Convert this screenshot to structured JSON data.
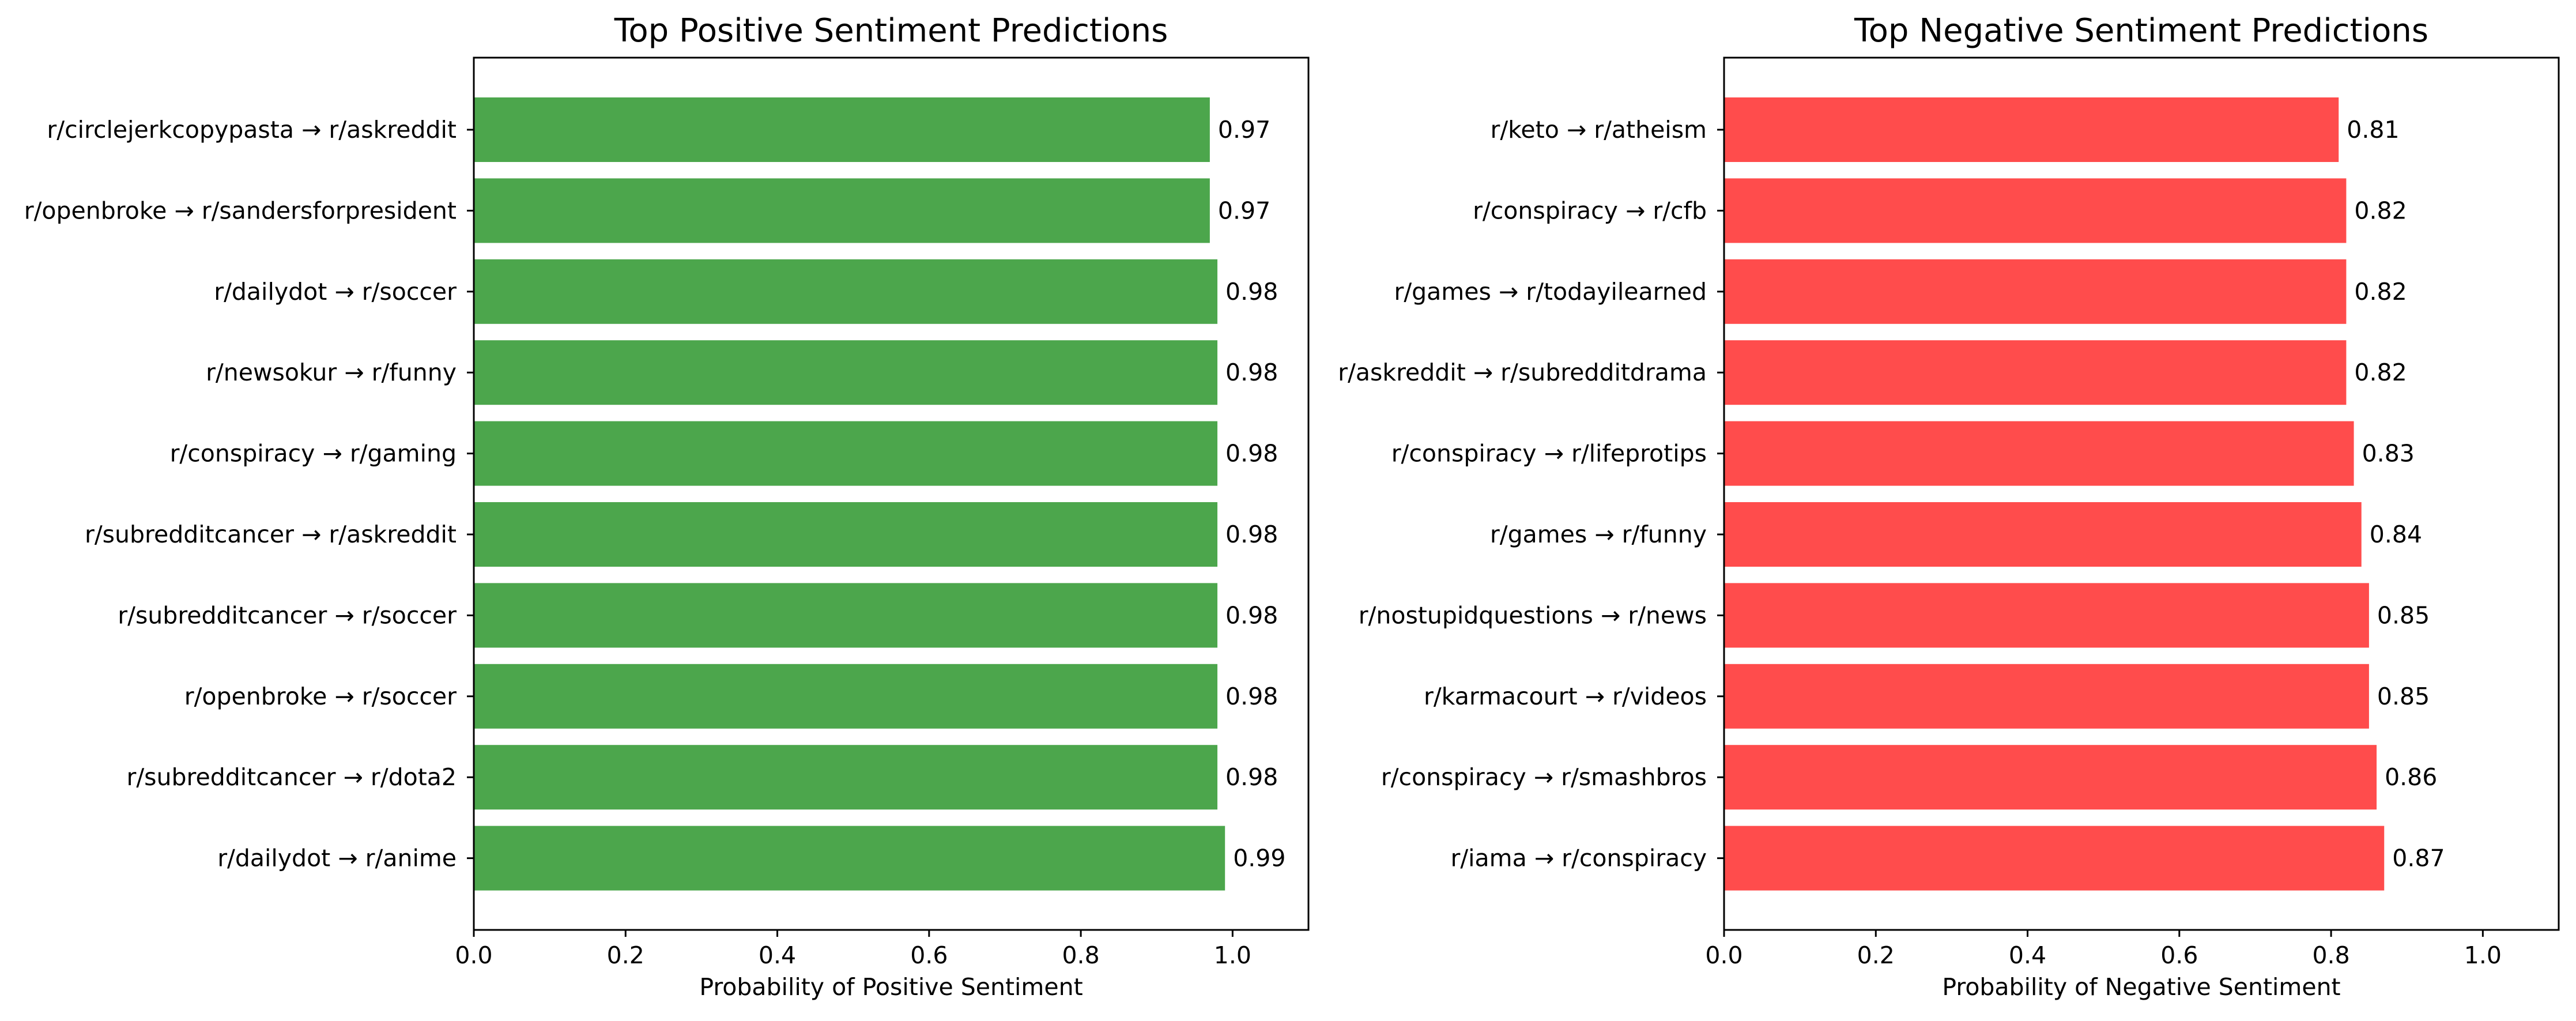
{
  "chart_data": [
    {
      "type": "bar",
      "orientation": "horizontal",
      "title": "Top Positive Sentiment Predictions",
      "xlabel": "Probability of Positive Sentiment",
      "ylabel": "",
      "xlim": [
        0,
        1.1
      ],
      "xticks": [
        0.0,
        0.2,
        0.4,
        0.6,
        0.8,
        1.0
      ],
      "xtick_labels": [
        "0.0",
        "0.2",
        "0.4",
        "0.6",
        "0.8",
        "1.0"
      ],
      "grid": false,
      "bar_color": "#4ca64c",
      "categories": [
        "r/circlejerkcopypasta → r/askreddit",
        "r/openbroke → r/sandersforpresident",
        "r/dailydot → r/soccer",
        "r/newsokur → r/funny",
        "r/conspiracy → r/gaming",
        "r/subredditcancer → r/askreddit",
        "r/subredditcancer → r/soccer",
        "r/openbroke → r/soccer",
        "r/subredditcancer → r/dota2",
        "r/dailydot → r/anime"
      ],
      "values": [
        0.97,
        0.97,
        0.98,
        0.98,
        0.98,
        0.98,
        0.98,
        0.98,
        0.98,
        0.99
      ],
      "value_labels": [
        "0.97",
        "0.97",
        "0.98",
        "0.98",
        "0.98",
        "0.98",
        "0.98",
        "0.98",
        "0.98",
        "0.99"
      ]
    },
    {
      "type": "bar",
      "orientation": "horizontal",
      "title": "Top Negative Sentiment Predictions",
      "xlabel": "Probability of Negative Sentiment",
      "ylabel": "",
      "xlim": [
        0,
        1.1
      ],
      "xticks": [
        0.0,
        0.2,
        0.4,
        0.6,
        0.8,
        1.0
      ],
      "xtick_labels": [
        "0.0",
        "0.2",
        "0.4",
        "0.6",
        "0.8",
        "1.0"
      ],
      "grid": false,
      "bar_color": "#ff4c4c",
      "categories": [
        "r/keto → r/atheism",
        "r/conspiracy → r/cfb",
        "r/games → r/todayilearned",
        "r/askreddit → r/subredditdrama",
        "r/conspiracy → r/lifeprotips",
        "r/games → r/funny",
        "r/nostupidquestions → r/news",
        "r/karmacourt → r/videos",
        "r/conspiracy → r/smashbros",
        "r/iama → r/conspiracy"
      ],
      "values": [
        0.81,
        0.82,
        0.82,
        0.82,
        0.83,
        0.84,
        0.85,
        0.85,
        0.86,
        0.87
      ],
      "value_labels": [
        "0.81",
        "0.82",
        "0.82",
        "0.82",
        "0.83",
        "0.84",
        "0.85",
        "0.85",
        "0.86",
        "0.87"
      ]
    }
  ]
}
